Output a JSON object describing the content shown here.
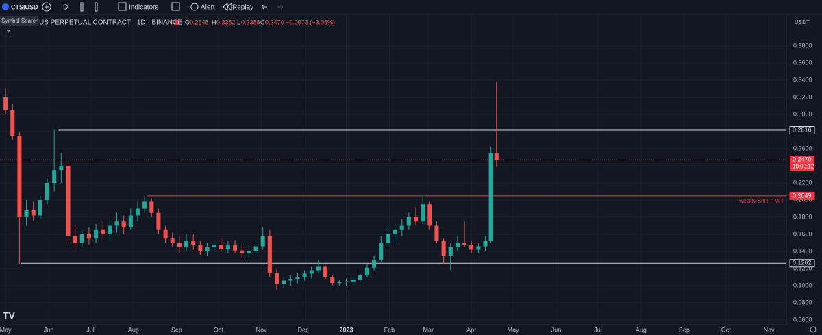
{
  "toolbar": {
    "symbol": "CTSIUSD",
    "tooltip": "Symbol Search",
    "interval": "D",
    "indicators": "Indicators",
    "alert": "Alert",
    "replay": "Replay"
  },
  "chart_data": {
    "type": "candlestick",
    "title": "US PERPETUAL CONTRACT · 1D · BINANCE",
    "legend": {
      "o": "O",
      "open": "0.2548",
      "h": "H",
      "high": "0.3382",
      "l": "L",
      "low": "0.2388",
      "c": "C",
      "close": "0.2470",
      "change": "−0.0078 (−3.06%)"
    },
    "badge": "7",
    "currency": "USDT",
    "countdown": "18:08:12",
    "up_color": "#26a69a",
    "down_color": "#ef5350",
    "grid": true,
    "x": [
      "2022-05-01",
      "2022-05-06",
      "2022-05-11",
      "2022-05-16",
      "2022-05-21",
      "2022-05-26",
      "2022-05-31",
      "2022-06-05",
      "2022-06-10",
      "2022-06-15",
      "2022-06-20",
      "2022-06-25",
      "2022-06-30",
      "2022-07-05",
      "2022-07-10",
      "2022-07-15",
      "2022-07-20",
      "2022-07-25",
      "2022-07-30",
      "2022-08-04",
      "2022-08-09",
      "2022-08-14",
      "2022-08-19",
      "2022-08-24",
      "2022-08-29",
      "2022-09-03",
      "2022-09-08",
      "2022-09-13",
      "2022-09-18",
      "2022-09-23",
      "2022-09-28",
      "2022-10-03",
      "2022-10-08",
      "2022-10-13",
      "2022-10-18",
      "2022-10-23",
      "2022-10-28",
      "2022-11-02",
      "2022-11-07",
      "2022-11-12",
      "2022-11-17",
      "2022-11-22",
      "2022-11-27",
      "2022-12-02",
      "2022-12-07",
      "2022-12-12",
      "2022-12-17",
      "2022-12-22",
      "2022-12-27",
      "2023-01-01",
      "2023-01-06",
      "2023-01-11",
      "2023-01-16",
      "2023-01-21",
      "2023-01-26",
      "2023-01-31",
      "2023-02-05",
      "2023-02-10",
      "2023-02-15",
      "2023-02-20",
      "2023-02-25",
      "2023-03-02",
      "2023-03-07",
      "2023-03-12",
      "2023-03-17",
      "2023-03-22",
      "2023-03-27",
      "2023-04-01",
      "2023-04-06",
      "2023-04-11",
      "2023-04-15",
      "2023-04-19"
    ],
    "open": [
      0.32,
      0.305,
      0.275,
      0.18,
      0.188,
      0.182,
      0.2,
      0.22,
      0.235,
      0.24,
      0.158,
      0.15,
      0.16,
      0.155,
      0.165,
      0.16,
      0.17,
      0.175,
      0.168,
      0.182,
      0.19,
      0.198,
      0.185,
      0.165,
      0.155,
      0.15,
      0.145,
      0.152,
      0.148,
      0.14,
      0.145,
      0.148,
      0.143,
      0.147,
      0.141,
      0.138,
      0.14,
      0.146,
      0.158,
      0.115,
      0.102,
      0.106,
      0.108,
      0.11,
      0.114,
      0.118,
      0.122,
      0.11,
      0.103,
      0.104,
      0.105,
      0.107,
      0.112,
      0.121,
      0.13,
      0.15,
      0.16,
      0.165,
      0.17,
      0.18,
      0.175,
      0.195,
      0.17,
      0.152,
      0.135,
      0.145,
      0.15,
      0.148,
      0.142,
      0.146,
      0.152,
      0.2548
    ],
    "high": [
      0.33,
      0.312,
      0.28,
      0.2,
      0.198,
      0.205,
      0.225,
      0.282,
      0.255,
      0.245,
      0.17,
      0.165,
      0.168,
      0.172,
      0.175,
      0.178,
      0.185,
      0.182,
      0.19,
      0.198,
      0.205,
      0.202,
      0.19,
      0.17,
      0.162,
      0.158,
      0.16,
      0.16,
      0.152,
      0.15,
      0.152,
      0.155,
      0.152,
      0.153,
      0.148,
      0.146,
      0.15,
      0.168,
      0.165,
      0.12,
      0.11,
      0.112,
      0.115,
      0.118,
      0.122,
      0.13,
      0.124,
      0.112,
      0.107,
      0.108,
      0.11,
      0.115,
      0.125,
      0.135,
      0.158,
      0.168,
      0.172,
      0.178,
      0.185,
      0.192,
      0.205,
      0.198,
      0.175,
      0.155,
      0.15,
      0.158,
      0.175,
      0.152,
      0.15,
      0.158,
      0.262,
      0.3382
    ],
    "low": [
      0.3,
      0.27,
      0.125,
      0.17,
      0.176,
      0.178,
      0.195,
      0.21,
      0.22,
      0.15,
      0.14,
      0.145,
      0.148,
      0.15,
      0.155,
      0.152,
      0.162,
      0.16,
      0.165,
      0.175,
      0.185,
      0.18,
      0.16,
      0.15,
      0.145,
      0.138,
      0.14,
      0.142,
      0.136,
      0.135,
      0.14,
      0.14,
      0.138,
      0.138,
      0.132,
      0.132,
      0.136,
      0.142,
      0.11,
      0.095,
      0.097,
      0.1,
      0.103,
      0.106,
      0.108,
      0.115,
      0.108,
      0.1,
      0.1,
      0.1,
      0.101,
      0.104,
      0.11,
      0.118,
      0.128,
      0.145,
      0.15,
      0.158,
      0.165,
      0.17,
      0.172,
      0.165,
      0.15,
      0.125,
      0.118,
      0.14,
      0.145,
      0.138,
      0.138,
      0.14,
      0.15,
      0.2388
    ],
    "close": [
      0.305,
      0.275,
      0.18,
      0.188,
      0.182,
      0.2,
      0.22,
      0.235,
      0.24,
      0.158,
      0.15,
      0.16,
      0.155,
      0.165,
      0.16,
      0.17,
      0.175,
      0.168,
      0.182,
      0.19,
      0.198,
      0.185,
      0.165,
      0.155,
      0.15,
      0.145,
      0.152,
      0.148,
      0.14,
      0.145,
      0.148,
      0.143,
      0.147,
      0.141,
      0.138,
      0.14,
      0.146,
      0.158,
      0.115,
      0.102,
      0.106,
      0.108,
      0.11,
      0.114,
      0.118,
      0.122,
      0.11,
      0.103,
      0.104,
      0.105,
      0.107,
      0.112,
      0.121,
      0.13,
      0.15,
      0.16,
      0.165,
      0.17,
      0.18,
      0.175,
      0.195,
      0.17,
      0.152,
      0.135,
      0.145,
      0.15,
      0.148,
      0.142,
      0.146,
      0.152,
      0.2548,
      0.247
    ],
    "levels": [
      {
        "value": 0.2816,
        "label": "0.2816",
        "start": "2022-06-08",
        "color": "#d1d4dc"
      },
      {
        "value": 0.2049,
        "label": "0.2049",
        "start": "2022-08-11",
        "color": "#f23645",
        "note": "weekly SnR + MR"
      },
      {
        "value": 0.1262,
        "label": "0.1262",
        "start": "2022-05-12",
        "color": "#d1d4dc"
      }
    ],
    "last_price": {
      "value": 0.247,
      "label": "0.2470",
      "color": "#f23645"
    },
    "xlim": [
      "2022-04-27",
      "2023-11-12"
    ],
    "xticks": [
      {
        "value": "2022-05-01",
        "label": "May"
      },
      {
        "value": "2022-06-01",
        "label": "Jun"
      },
      {
        "value": "2022-07-01",
        "label": "Jul"
      },
      {
        "value": "2022-08-01",
        "label": "Aug"
      },
      {
        "value": "2022-09-01",
        "label": "Sep"
      },
      {
        "value": "2022-10-01",
        "label": "Oct"
      },
      {
        "value": "2022-11-01",
        "label": "Nov"
      },
      {
        "value": "2022-12-01",
        "label": "Dec"
      },
      {
        "value": "2023-01-01",
        "label": "2023"
      },
      {
        "value": "2023-02-01",
        "label": "Feb"
      },
      {
        "value": "2023-03-01",
        "label": "Mar"
      },
      {
        "value": "2023-04-01",
        "label": "Apr"
      },
      {
        "value": "2023-05-01",
        "label": "May"
      },
      {
        "value": "2023-06-01",
        "label": "Jun"
      },
      {
        "value": "2023-07-01",
        "label": "Jul"
      },
      {
        "value": "2023-08-01",
        "label": "Aug"
      },
      {
        "value": "2023-09-01",
        "label": "Sep"
      },
      {
        "value": "2023-10-01",
        "label": "Oct"
      },
      {
        "value": "2023-11-01",
        "label": "Nov"
      }
    ],
    "ylim": [
      0.0512,
      0.416
    ],
    "yticks": [
      {
        "value": 0.06,
        "label": "0.0600"
      },
      {
        "value": 0.08,
        "label": "0.0800"
      },
      {
        "value": 0.1,
        "label": "0.1000"
      },
      {
        "value": 0.12,
        "label": "0.1200"
      },
      {
        "value": 0.14,
        "label": "0.1400"
      },
      {
        "value": 0.16,
        "label": "0.1600"
      },
      {
        "value": 0.18,
        "label": "0.1800"
      },
      {
        "value": 0.2,
        "label": "0.2000"
      },
      {
        "value": 0.22,
        "label": "0.2200"
      },
      {
        "value": 0.24,
        "label": "0.2400"
      },
      {
        "value": 0.26,
        "label": "0.2600"
      },
      {
        "value": 0.28,
        "label": "0.2800"
      },
      {
        "value": 0.3,
        "label": "0.3000"
      },
      {
        "value": 0.32,
        "label": "0.3200"
      },
      {
        "value": 0.34,
        "label": "0.3400"
      },
      {
        "value": 0.36,
        "label": "0.3600"
      },
      {
        "value": 0.38,
        "label": "0.3800"
      }
    ]
  }
}
